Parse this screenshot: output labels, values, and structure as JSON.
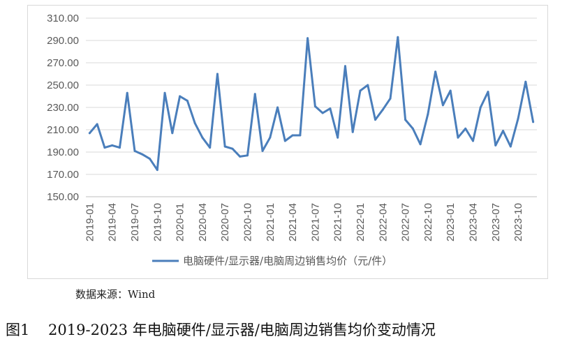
{
  "chart_data": {
    "type": "line",
    "series": [
      {
        "name": "电脑硬件/显示器/电脑周边销售均价（元/件）",
        "color": "#4a7ebb",
        "values": [
          207,
          215,
          194,
          196,
          194,
          243,
          191,
          188,
          184,
          174,
          243,
          207,
          240,
          236,
          216,
          203,
          194,
          260,
          195,
          193,
          186,
          187,
          242,
          191,
          203,
          230,
          200,
          205,
          205,
          292,
          231,
          225,
          229,
          203,
          267,
          208,
          245,
          250,
          219,
          228,
          238,
          293,
          219,
          211,
          197,
          224,
          262,
          232,
          245,
          203,
          211,
          200,
          230,
          244,
          196,
          209,
          195,
          220,
          253,
          217
        ],
        "x": [
          "2019-01",
          "2019-02",
          "2019-03",
          "2019-04",
          "2019-05",
          "2019-06",
          "2019-07",
          "2019-08",
          "2019-09",
          "2019-10",
          "2019-11",
          "2019-12",
          "2020-01",
          "2020-02",
          "2020-03",
          "2020-04",
          "2020-05",
          "2020-06",
          "2020-07",
          "2020-08",
          "2020-09",
          "2020-10",
          "2020-11",
          "2020-12",
          "2021-01",
          "2021-02",
          "2021-03",
          "2021-04",
          "2021-05",
          "2021-06",
          "2021-07",
          "2021-08",
          "2021-09",
          "2021-10",
          "2021-11",
          "2021-12",
          "2022-01",
          "2022-02",
          "2022-03",
          "2022-04",
          "2022-05",
          "2022-06",
          "2022-07",
          "2022-08",
          "2022-09",
          "2022-10",
          "2022-11",
          "2022-12",
          "2023-01",
          "2023-02",
          "2023-03",
          "2023-04",
          "2023-05",
          "2023-06",
          "2023-07",
          "2023-08",
          "2023-09",
          "2023-10",
          "2023-11",
          "2023-12"
        ]
      }
    ],
    "x_tick_labels": [
      "2019-01",
      "2019-04",
      "2019-07",
      "2019-10",
      "2020-01",
      "2020-04",
      "2020-07",
      "2020-10",
      "2021-01",
      "2021-04",
      "2021-07",
      "2021-10",
      "2022-01",
      "2022-04",
      "2022-07",
      "2022-10",
      "2023-01",
      "2023-04",
      "2023-07",
      "2023-10"
    ],
    "y_tick_labels": [
      "150.00",
      "170.00",
      "190.00",
      "210.00",
      "230.00",
      "250.00",
      "270.00",
      "290.00",
      "310.00"
    ],
    "ylim": [
      150,
      310
    ],
    "grid": "horizontal",
    "legend": "bottom"
  },
  "source_text": "数据来源：Wind",
  "caption": "图1    2019-2023 年电脑硬件/显示器/电脑周边销售均价变动情况"
}
